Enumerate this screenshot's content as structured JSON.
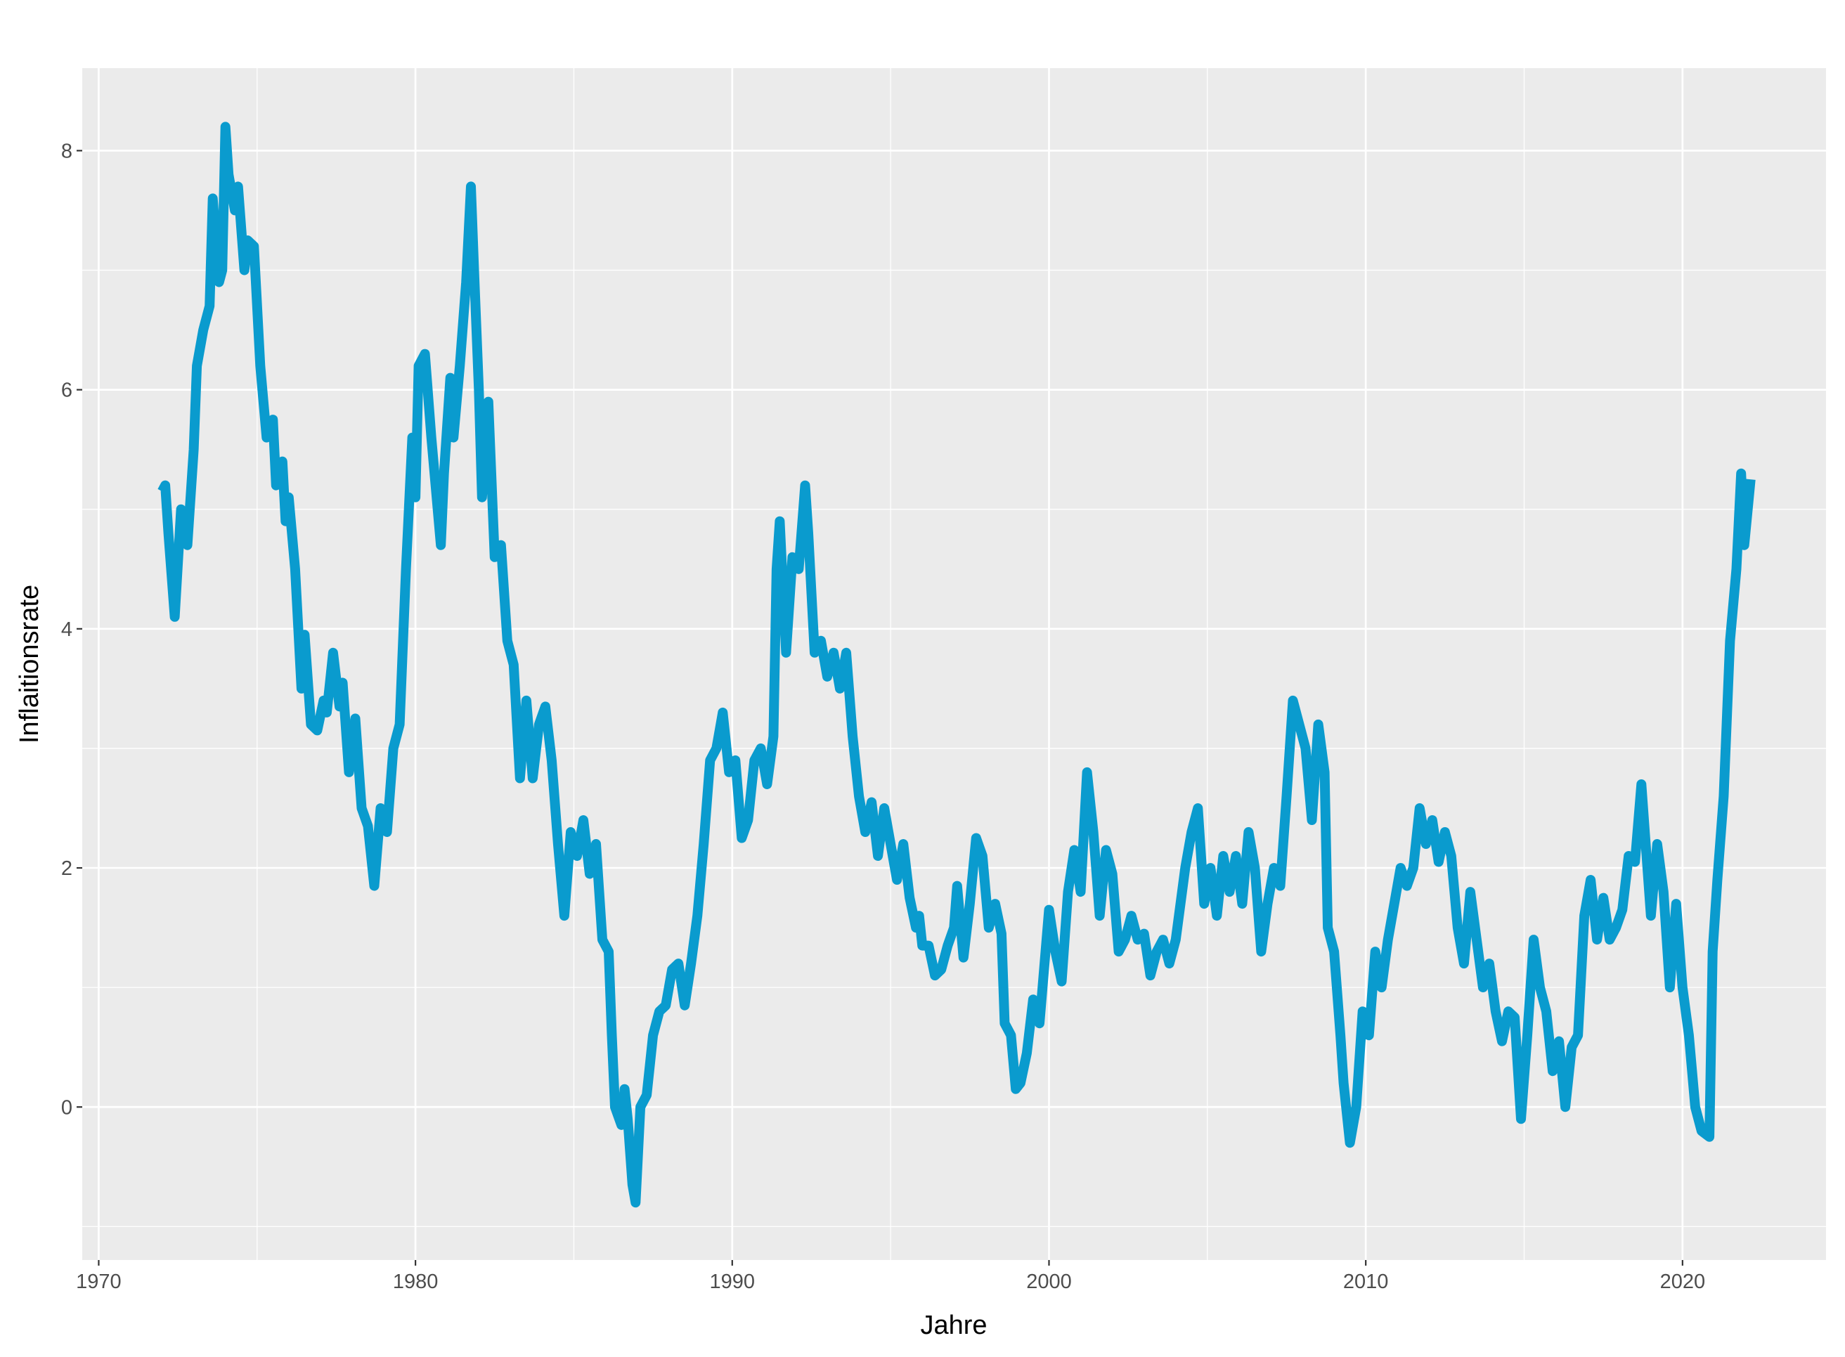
{
  "chart_data": {
    "type": "line",
    "xlabel": "Jahre",
    "ylabel": "Inflaitionsrate",
    "xlim": [
      1969.48,
      2024.53
    ],
    "ylim": [
      -1.28,
      8.69
    ],
    "xticks": [
      1970,
      1980,
      1990,
      2000,
      2010,
      2020
    ],
    "yticks": [
      0,
      2,
      4,
      6,
      8
    ],
    "xminorticks": [
      1975,
      1985,
      1995,
      2005,
      2015
    ],
    "yminorticks": [
      -1,
      1,
      3,
      5,
      7
    ],
    "grid": true,
    "background": "#ebebeb",
    "x": [
      1972.0,
      1972.1,
      1972.2,
      1972.4,
      1972.6,
      1972.8,
      1973.0,
      1973.1,
      1973.3,
      1973.5,
      1973.6,
      1973.8,
      1973.9,
      1974.0,
      1974.1,
      1974.3,
      1974.4,
      1974.6,
      1974.7,
      1974.9,
      1975.1,
      1975.3,
      1975.5,
      1975.6,
      1975.8,
      1975.9,
      1976.0,
      1976.2,
      1976.4,
      1976.5,
      1976.7,
      1976.9,
      1977.1,
      1977.2,
      1977.4,
      1977.6,
      1977.7,
      1977.9,
      1978.1,
      1978.3,
      1978.5,
      1978.7,
      1978.9,
      1979.1,
      1979.3,
      1979.5,
      1979.7,
      1979.9,
      1980.0,
      1980.1,
      1980.3,
      1980.5,
      1980.8,
      1980.9,
      1981.1,
      1981.2,
      1981.4,
      1981.6,
      1981.75,
      1981.85,
      1982.0,
      1982.1,
      1982.3,
      1982.5,
      1982.7,
      1982.9,
      1983.1,
      1983.3,
      1983.5,
      1983.7,
      1983.9,
      1984.1,
      1984.3,
      1984.5,
      1984.7,
      1984.9,
      1985.1,
      1985.3,
      1985.5,
      1985.7,
      1985.9,
      1986.1,
      1986.2,
      1986.3,
      1986.5,
      1986.6,
      1986.7,
      1986.85,
      1986.95,
      1987.1,
      1987.3,
      1987.5,
      1987.7,
      1987.9,
      1988.1,
      1988.3,
      1988.5,
      1988.7,
      1988.9,
      1989.1,
      1989.3,
      1989.5,
      1989.7,
      1989.9,
      1990.1,
      1990.3,
      1990.5,
      1990.7,
      1990.9,
      1991.1,
      1991.3,
      1991.4,
      1991.5,
      1991.7,
      1991.9,
      1992.1,
      1992.3,
      1992.4,
      1992.6,
      1992.8,
      1993.0,
      1993.2,
      1993.4,
      1993.6,
      1993.8,
      1994.0,
      1994.2,
      1994.4,
      1994.6,
      1994.8,
      1995.0,
      1995.2,
      1995.4,
      1995.6,
      1995.8,
      1995.9,
      1996.0,
      1996.2,
      1996.4,
      1996.6,
      1996.8,
      1997.0,
      1997.1,
      1997.3,
      1997.5,
      1997.7,
      1997.9,
      1998.1,
      1998.3,
      1998.5,
      1998.6,
      1998.8,
      1998.95,
      1999.1,
      1999.3,
      1999.5,
      1999.7,
      2000.0,
      2000.2,
      2000.4,
      2000.6,
      2000.8,
      2001.0,
      2001.2,
      2001.4,
      2001.6,
      2001.8,
      2002.0,
      2002.2,
      2002.4,
      2002.6,
      2002.8,
      2003.0,
      2003.2,
      2003.4,
      2003.6,
      2003.8,
      2004.0,
      2004.3,
      2004.5,
      2004.7,
      2004.9,
      2005.1,
      2005.3,
      2005.5,
      2005.7,
      2005.9,
      2006.1,
      2006.3,
      2006.5,
      2006.7,
      2006.9,
      2007.1,
      2007.3,
      2007.5,
      2007.7,
      2008.1,
      2008.3,
      2008.5,
      2008.7,
      2008.8,
      2009.0,
      2009.2,
      2009.3,
      2009.5,
      2009.7,
      2009.9,
      2010.1,
      2010.3,
      2010.5,
      2010.7,
      2010.9,
      2011.1,
      2011.3,
      2011.5,
      2011.7,
      2011.9,
      2012.1,
      2012.3,
      2012.5,
      2012.7,
      2012.9,
      2013.1,
      2013.3,
      2013.5,
      2013.7,
      2013.9,
      2014.1,
      2014.3,
      2014.5,
      2014.7,
      2014.9,
      2015.1,
      2015.3,
      2015.5,
      2015.7,
      2015.9,
      2016.1,
      2016.3,
      2016.5,
      2016.7,
      2016.9,
      2017.1,
      2017.3,
      2017.5,
      2017.7,
      2017.9,
      2018.1,
      2018.3,
      2018.5,
      2018.7,
      2019.0,
      2019.2,
      2019.4,
      2019.6,
      2019.8,
      2020.0,
      2020.2,
      2020.4,
      2020.6,
      2020.85,
      2020.95,
      2021.1,
      2021.3,
      2021.5,
      2021.7,
      2021.85,
      2021.95,
      2022.15
    ],
    "series": [
      {
        "color": "#0a9bce",
        "values": [
          5.15,
          5.2,
          4.8,
          4.1,
          5.0,
          4.7,
          5.5,
          6.2,
          6.5,
          6.7,
          7.6,
          6.9,
          7.0,
          8.2,
          7.8,
          7.5,
          7.7,
          7.0,
          7.25,
          7.2,
          6.2,
          5.6,
          5.75,
          5.2,
          5.4,
          4.9,
          5.1,
          4.5,
          3.5,
          3.95,
          3.2,
          3.15,
          3.4,
          3.3,
          3.8,
          3.35,
          3.55,
          2.8,
          3.25,
          2.5,
          2.35,
          1.85,
          2.5,
          2.3,
          3.0,
          3.2,
          4.5,
          5.6,
          5.1,
          6.2,
          6.3,
          5.6,
          4.7,
          5.3,
          6.1,
          5.6,
          6.2,
          6.9,
          7.7,
          7.0,
          6.0,
          5.1,
          5.9,
          4.6,
          4.7,
          3.9,
          3.7,
          2.75,
          3.4,
          2.75,
          3.2,
          3.35,
          2.9,
          2.2,
          1.6,
          2.3,
          2.1,
          2.4,
          1.95,
          2.2,
          1.4,
          1.3,
          0.6,
          0.0,
          -0.15,
          0.15,
          -0.1,
          -0.65,
          -0.8,
          0.0,
          0.1,
          0.6,
          0.8,
          0.85,
          1.15,
          1.2,
          0.85,
          1.2,
          1.6,
          2.2,
          2.9,
          3.0,
          3.3,
          2.8,
          2.9,
          2.25,
          2.4,
          2.9,
          3.0,
          2.7,
          3.1,
          4.5,
          4.9,
          3.8,
          4.6,
          4.5,
          5.2,
          4.8,
          3.8,
          3.9,
          3.6,
          3.8,
          3.5,
          3.8,
          3.1,
          2.6,
          2.3,
          2.55,
          2.1,
          2.5,
          2.2,
          1.9,
          2.2,
          1.75,
          1.5,
          1.6,
          1.35,
          1.35,
          1.1,
          1.15,
          1.35,
          1.5,
          1.85,
          1.25,
          1.7,
          2.25,
          2.1,
          1.5,
          1.7,
          1.45,
          0.7,
          0.6,
          0.15,
          0.2,
          0.45,
          0.9,
          0.7,
          1.65,
          1.3,
          1.05,
          1.8,
          2.15,
          1.8,
          2.8,
          2.3,
          1.6,
          2.15,
          1.95,
          1.3,
          1.4,
          1.6,
          1.4,
          1.45,
          1.1,
          1.3,
          1.4,
          1.2,
          1.4,
          2.0,
          2.3,
          2.5,
          1.7,
          2.0,
          1.6,
          2.1,
          1.8,
          2.1,
          1.7,
          2.3,
          2.0,
          1.3,
          1.7,
          2.0,
          1.85,
          2.6,
          3.4,
          3.0,
          2.4,
          3.2,
          2.8,
          1.5,
          1.3,
          0.6,
          0.2,
          -0.3,
          0.0,
          0.8,
          0.6,
          1.3,
          1.0,
          1.4,
          1.7,
          2.0,
          1.85,
          2.0,
          2.5,
          2.2,
          2.4,
          2.05,
          2.3,
          2.1,
          1.5,
          1.2,
          1.8,
          1.4,
          1.0,
          1.2,
          0.8,
          0.55,
          0.8,
          0.75,
          -0.1,
          0.6,
          1.4,
          1.0,
          0.8,
          0.3,
          0.55,
          0.0,
          0.5,
          0.6,
          1.6,
          1.9,
          1.4,
          1.75,
          1.4,
          1.5,
          1.65,
          2.1,
          2.05,
          2.7,
          1.6,
          2.2,
          1.8,
          1.0,
          1.7,
          1.0,
          0.6,
          0.0,
          -0.2,
          -0.25,
          1.3,
          1.9,
          2.6,
          3.9,
          4.5,
          5.3,
          4.7,
          5.25
        ]
      }
    ]
  }
}
